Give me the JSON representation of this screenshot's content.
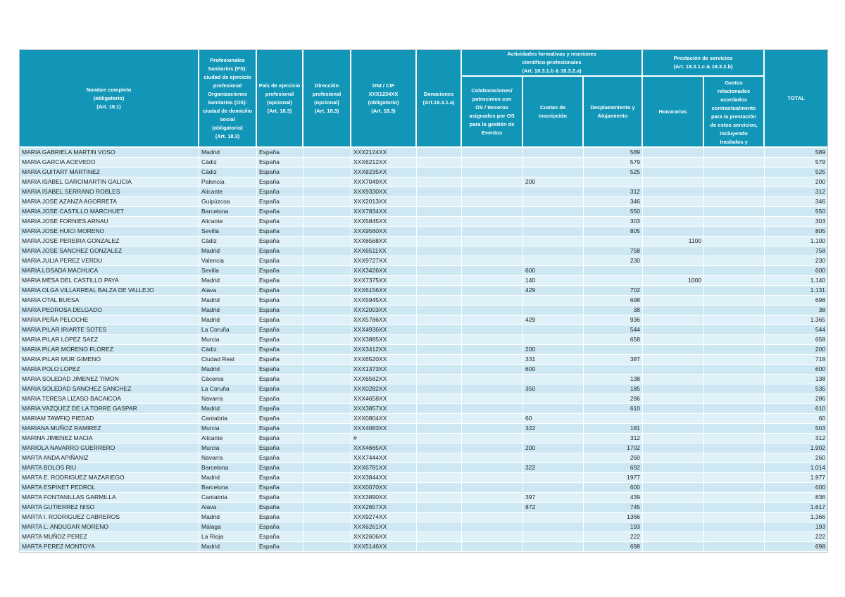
{
  "colors": {
    "header_bg": "#1296B8",
    "header_text": "#FFFFFF",
    "row_odd_bg": "#CDE8F3",
    "row_even_bg": "#DEF0F8",
    "body_text": "#1F1F1F",
    "grid_line": "#FFFFFF"
  },
  "table": {
    "header": {
      "nombre": "Nombre completo\n(obligatorio)\n(Art. 18.1)",
      "ciudad": "Profesionales\nSanitarios (PS):\nciudad de ejercicio\nprofesional\nOrganizaciones\nSanitarias (OS):\nciudad de domicilio\nsocial\n(obligatorio)\n(Art. 18.3)",
      "pais": "País de ejercicio\nprofesional\n(opcional)\n(Art. 18.3)",
      "direccion": "Dirección\nprofesional\n(opcional)\n(Art. 18.3)",
      "dni": "DNI / CIF\nXXX1234XX\n(obligatorio)\n(Art. 18.3)",
      "donaciones": "Donaciones\n(Art.18.3.1.a)",
      "grupo_actividades": "Actividades formativas y reuniones\ncientífico-profesionales\n(Art. 18.3.1.b & 18.3.2.a)",
      "colaboraciones": "Colaboraciones/\npatrocinios con\nOS / terceros\nasignados por OS\npara la gestión de\nEventos",
      "cuotas": "Cuotas de\ninscripción",
      "desplazamiento": "Desplazamiento y\nAlojamiento",
      "grupo_prestacion": "Prestación de servicios\n(Art. 18.3.1.c & 18.3.2.b)",
      "honorarios": "Honorarios",
      "gastos": "Gastos\nrelacionados\nacordados\ncontractualmente\npara la prestación\nde estos servicios,\nincluyendo\ntraslados y",
      "total": "TOTAL"
    },
    "column_keys": [
      "nombre",
      "ciudad",
      "pais",
      "direccion",
      "dni",
      "donaciones",
      "colaboraciones",
      "cuotas",
      "desplazamiento",
      "honorarios",
      "gastos",
      "total"
    ],
    "column_align": [
      "left",
      "left",
      "left",
      "left",
      "left",
      "right",
      "right",
      "left",
      "right",
      "right",
      "right",
      "right"
    ],
    "rows": [
      [
        "MARIA GABRIELA MARTIN VOSO",
        "Madrid",
        "España",
        "",
        "XXX2124XX",
        "",
        "",
        "",
        "589",
        "",
        "",
        "589"
      ],
      [
        "MARIA GARCIA ACEVEDO",
        "Cádiz",
        "España",
        "",
        "XXX6212XX",
        "",
        "",
        "",
        "579",
        "",
        "",
        "579"
      ],
      [
        "MARIA GUITART MARTINEZ",
        "Cádiz",
        "España",
        "",
        "XXX8235XX",
        "",
        "",
        "",
        "525",
        "",
        "",
        "525"
      ],
      [
        "MARIA ISABEL GARCIMARTIN GALICIA",
        "Palencia",
        "España",
        "",
        "XXX7049XX",
        "",
        "",
        "200",
        "",
        "",
        "",
        "200"
      ],
      [
        "MARIA ISABEL SERRANO ROBLES",
        "Alicante",
        "España",
        "",
        "XXX9330XX",
        "",
        "",
        "",
        "312",
        "",
        "",
        "312"
      ],
      [
        "MARIA JOSE AZANZA AGORRETA",
        "Guipúzcoa",
        "España",
        "",
        "XXX2013XX",
        "",
        "",
        "",
        "346",
        "",
        "",
        "346"
      ],
      [
        "MARIA JOSE CASTILLO MARCHUET",
        "Barcelona",
        "España",
        "",
        "XXX7834XX",
        "",
        "",
        "",
        "550",
        "",
        "",
        "550"
      ],
      [
        "MARIA JOSE FORNIES ARNAU",
        "Alicante",
        "España",
        "",
        "XXX5845XX",
        "",
        "",
        "",
        "303",
        "",
        "",
        "303"
      ],
      [
        "MARIA JOSE HUICI MORENO",
        "Sevilla",
        "España",
        "",
        "XXX9560XX",
        "",
        "",
        "",
        "805",
        "",
        "",
        "805"
      ],
      [
        "MARIA JOSE PEREIRA GONZALEZ",
        "Cádiz",
        "España",
        "",
        "XXX6568XX",
        "",
        "",
        "",
        "",
        "1100",
        "",
        "1.100"
      ],
      [
        "MARIA JOSE SANCHEZ GONZALEZ",
        "Madrid",
        "España",
        "",
        "XXX6511XX",
        "",
        "",
        "",
        "758",
        "",
        "",
        "758"
      ],
      [
        "MARIA JULIA PEREZ VERDU",
        "Valencia",
        "España",
        "",
        "XXX9727XX",
        "",
        "",
        "",
        "230",
        "",
        "",
        "230"
      ],
      [
        "MARIA LOSADA MACHUCA",
        "Sevilla",
        "España",
        "",
        "XXX3426XX",
        "",
        "",
        "600",
        "",
        "",
        "",
        "600"
      ],
      [
        "MARIA MESA DEL CASTILLO PAYA",
        "Madrid",
        "España",
        "",
        "XXX7375XX",
        "",
        "",
        "140",
        "",
        "1000",
        "",
        "1.140"
      ],
      [
        "MARIA OLGA VILLARREAL BALZA DE VALLEJO",
        "Alava",
        "España",
        "",
        "XXX6156XX",
        "",
        "",
        "429",
        "702",
        "",
        "",
        "1.131"
      ],
      [
        "MARIA OTAL BUESA",
        "Madrid",
        "España",
        "",
        "XXX5945XX",
        "",
        "",
        "",
        "698",
        "",
        "",
        "698"
      ],
      [
        "MARIA PEDROSA DELGADO",
        "Madrid",
        "España",
        "",
        "XXX2003XX",
        "",
        "",
        "",
        "38",
        "",
        "",
        "38"
      ],
      [
        "MARIA PEÑA PELOCHE",
        "Madrid",
        "España",
        "",
        "XXX5786XX",
        "",
        "",
        "429",
        "936",
        "",
        "",
        "1.365"
      ],
      [
        "MARIA PILAR IRIARTE SOTES",
        "La Coruña",
        "España",
        "",
        "XXX4936XX",
        "",
        "",
        "",
        "544",
        "",
        "",
        "544"
      ],
      [
        "MARIA PILAR LOPEZ SAEZ",
        "Murcia",
        "España",
        "",
        "XXX3885XX",
        "",
        "",
        "",
        "658",
        "",
        "",
        "658"
      ],
      [
        "MARIA PILAR MORENO FLOREZ",
        "Cádiz",
        "España",
        "",
        "XXX3412XX",
        "",
        "",
        "200",
        "",
        "",
        "",
        "200"
      ],
      [
        "MARIA PILAR MUR GIMENO",
        "Ciudad Real",
        "España",
        "",
        "XXX6520XX",
        "",
        "",
        "331",
        "387",
        "",
        "",
        "718"
      ],
      [
        "MARIA POLO LOPEZ",
        "Madrid",
        "España",
        "",
        "XXX1373XX",
        "",
        "",
        "600",
        "",
        "",
        "",
        "600"
      ],
      [
        "MARIA SOLEDAD JIMENEZ TIMON",
        "Cáceres",
        "España",
        "",
        "XXX6562XX",
        "",
        "",
        "",
        "138",
        "",
        "",
        "138"
      ],
      [
        "MARIA SOLEDAD SANCHEZ SANCHEZ",
        "La Coruña",
        "España",
        "",
        "XXX0282XX",
        "",
        "",
        "350",
        "185",
        "",
        "",
        "535"
      ],
      [
        "MARIA TERESA LIZASO BACAICOA",
        "Navarra",
        "España",
        "",
        "XXX4658XX",
        "",
        "",
        "",
        "286",
        "",
        "",
        "286"
      ],
      [
        "MARIA VAZQUEZ DE LA TORRE GASPAR",
        "Madrid",
        "España",
        "",
        "XXX3857XX",
        "",
        "",
        "",
        "610",
        "",
        "",
        "610"
      ],
      [
        "MARIAM TAWFIQ PIEDAD",
        "Cantabria",
        "España",
        "",
        "XXX0804XX",
        "",
        "",
        "60",
        "",
        "",
        "",
        "60"
      ],
      [
        "MARIANA MUÑOZ RAMIREZ",
        "Murcia",
        "España",
        "",
        "XXX4083XX",
        "",
        "",
        "322",
        "181",
        "",
        "",
        "503"
      ],
      [
        "MARINA JIMENEZ MACIA",
        "Alicante",
        "España",
        "",
        "#",
        "",
        "",
        "",
        "312",
        "",
        "",
        "312"
      ],
      [
        "MARIOLA NAVARRO GUERRERO",
        "Murcia",
        "España",
        "",
        "XXX4665XX",
        "",
        "",
        "200",
        "1702",
        "",
        "",
        "1.902"
      ],
      [
        "MARTA ANDA APIÑANIZ",
        "Navarra",
        "España",
        "",
        "XXX7444XX",
        "",
        "",
        "",
        "260",
        "",
        "",
        "260"
      ],
      [
        "MARTA BOLOS RIU",
        "Barcelona",
        "España",
        "",
        "XXX6781XX",
        "",
        "",
        "322",
        "692",
        "",
        "",
        "1.014"
      ],
      [
        "MARTA E. RODRIGUEZ MAZARIEGO",
        "Madrid",
        "España",
        "",
        "XXX3844XX",
        "",
        "",
        "",
        "1977",
        "",
        "",
        "1.977"
      ],
      [
        "MARTA ESPINET PEDROL",
        "Barcelona",
        "España",
        "",
        "XXX0070XX",
        "",
        "",
        "",
        "600",
        "",
        "",
        "600"
      ],
      [
        "MARTA FONTANILLAS GARMILLA",
        "Cantabria",
        "España",
        "",
        "XXX3890XX",
        "",
        "",
        "397",
        "439",
        "",
        "",
        "836"
      ],
      [
        "MARTA GUTIERREZ NISO",
        "Alava",
        "España",
        "",
        "XXX2657XX",
        "",
        "",
        "872",
        "745",
        "",
        "",
        "1.617"
      ],
      [
        "MARTA I. RODRIGUEZ CABREROS",
        "Madrid",
        "España",
        "",
        "XXX9274XX",
        "",
        "",
        "",
        "1366",
        "",
        "",
        "1.366"
      ],
      [
        "MARTA L. ANDUGAR MORENO",
        "Málaga",
        "España",
        "",
        "XXX6261XX",
        "",
        "",
        "",
        "193",
        "",
        "",
        "193"
      ],
      [
        "MARTA MUÑOZ PEREZ",
        "La Rioja",
        "España",
        "",
        "XXX2606XX",
        "",
        "",
        "",
        "222",
        "",
        "",
        "222"
      ],
      [
        "MARTA PEREZ MONTOYA",
        "Madrid",
        "España",
        "",
        "XXX5146XX",
        "",
        "",
        "",
        "698",
        "",
        "",
        "698"
      ]
    ]
  }
}
